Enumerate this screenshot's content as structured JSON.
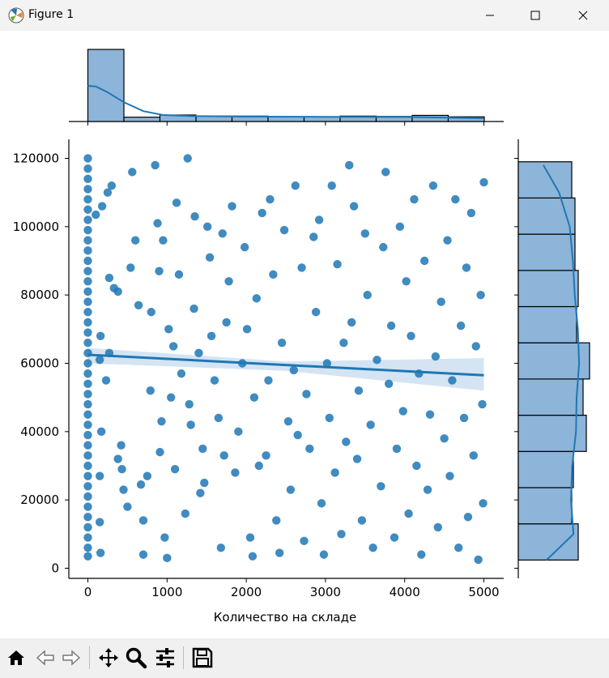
{
  "window": {
    "title": "Figure 1",
    "buttons": [
      "minimize",
      "maximize",
      "close"
    ]
  },
  "toolbar": {
    "tools": [
      "home-icon",
      "back-icon",
      "forward-icon",
      "pan-icon",
      "zoom-icon",
      "configure-subplots-icon",
      "save-icon"
    ]
  },
  "colors": {
    "series": "#1f77b4",
    "hist_fill": "#8db4d9",
    "ci_band": "#c6dbef"
  },
  "chart_data": {
    "type": "scatter",
    "title": "",
    "xlabel": "Количество на складе",
    "ylabel": "",
    "xlim": [
      -250,
      5250
    ],
    "ylim": [
      -3000,
      125000
    ],
    "xticks": [
      0,
      1000,
      2000,
      3000,
      4000,
      5000
    ],
    "yticks": [
      0,
      20000,
      40000,
      60000,
      80000,
      100000,
      120000
    ],
    "xtick_labels": [
      "0",
      "1000",
      "2000",
      "3000",
      "4000",
      "5000"
    ],
    "ytick_labels": [
      "0",
      "20000",
      "40000",
      "60000",
      "80000",
      "100000",
      "120000"
    ],
    "regression_line": {
      "x": [
        0,
        5000
      ],
      "y": [
        62500,
        56500
      ]
    },
    "confidence_band": {
      "x": [
        0,
        2500,
        5000
      ],
      "lower": [
        60000,
        57800,
        52000
      ],
      "upper": [
        64500,
        60500,
        61500
      ]
    },
    "scatter_points": [
      [
        0,
        3500
      ],
      [
        0,
        6000
      ],
      [
        0,
        9000
      ],
      [
        0,
        12000
      ],
      [
        0,
        15000
      ],
      [
        0,
        18000
      ],
      [
        0,
        21000
      ],
      [
        0,
        24000
      ],
      [
        0,
        27000
      ],
      [
        0,
        30000
      ],
      [
        0,
        33000
      ],
      [
        0,
        36000
      ],
      [
        0,
        39000
      ],
      [
        0,
        42000
      ],
      [
        0,
        45000
      ],
      [
        0,
        48000
      ],
      [
        0,
        51000
      ],
      [
        0,
        54000
      ],
      [
        0,
        57000
      ],
      [
        0,
        60000
      ],
      [
        0,
        63000
      ],
      [
        0,
        66000
      ],
      [
        0,
        69000
      ],
      [
        0,
        72000
      ],
      [
        0,
        75000
      ],
      [
        0,
        78000
      ],
      [
        0,
        81000
      ],
      [
        0,
        84000
      ],
      [
        0,
        87000
      ],
      [
        0,
        90000
      ],
      [
        0,
        93000
      ],
      [
        0,
        96000
      ],
      [
        0,
        99000
      ],
      [
        0,
        102000
      ],
      [
        0,
        105000
      ],
      [
        0,
        108000
      ],
      [
        0,
        111000
      ],
      [
        0,
        114000
      ],
      [
        0,
        117000
      ],
      [
        0,
        120000
      ],
      [
        160,
        4500
      ],
      [
        150,
        61000
      ],
      [
        160,
        68000
      ],
      [
        100,
        103500
      ],
      [
        180,
        106000
      ],
      [
        170,
        40000
      ],
      [
        150,
        27000
      ],
      [
        150,
        13500
      ],
      [
        270,
        85000
      ],
      [
        330,
        82000
      ],
      [
        380,
        81000
      ],
      [
        250,
        110000
      ],
      [
        300,
        112000
      ],
      [
        270,
        63000
      ],
      [
        230,
        55000
      ],
      [
        380,
        32000
      ],
      [
        420,
        36000
      ],
      [
        430,
        29000
      ],
      [
        450,
        23000
      ],
      [
        500,
        18000
      ],
      [
        540,
        88000
      ],
      [
        560,
        116000
      ],
      [
        600,
        96000
      ],
      [
        640,
        77000
      ],
      [
        670,
        24500
      ],
      [
        700,
        14000
      ],
      [
        700,
        4000
      ],
      [
        750,
        27000
      ],
      [
        790,
        52000
      ],
      [
        800,
        75000
      ],
      [
        850,
        118000
      ],
      [
        880,
        101000
      ],
      [
        900,
        87000
      ],
      [
        910,
        34000
      ],
      [
        930,
        43000
      ],
      [
        950,
        96000
      ],
      [
        970,
        9000
      ],
      [
        1000,
        3000
      ],
      [
        1020,
        70000
      ],
      [
        1050,
        50000
      ],
      [
        1080,
        65000
      ],
      [
        1100,
        29000
      ],
      [
        1120,
        107000
      ],
      [
        1150,
        86000
      ],
      [
        1180,
        57000
      ],
      [
        1230,
        16000
      ],
      [
        1260,
        120000
      ],
      [
        1280,
        48000
      ],
      [
        1300,
        42000
      ],
      [
        1340,
        76000
      ],
      [
        1350,
        103000
      ],
      [
        1400,
        63000
      ],
      [
        1420,
        22000
      ],
      [
        1450,
        35000
      ],
      [
        1470,
        25000
      ],
      [
        1510,
        100000
      ],
      [
        1540,
        91000
      ],
      [
        1560,
        68000
      ],
      [
        1600,
        55000
      ],
      [
        1650,
        44000
      ],
      [
        1680,
        6000
      ],
      [
        1700,
        98000
      ],
      [
        1720,
        33000
      ],
      [
        1750,
        72000
      ],
      [
        1780,
        84000
      ],
      [
        1820,
        106000
      ],
      [
        1860,
        28000
      ],
      [
        1900,
        40000
      ],
      [
        1950,
        60000
      ],
      [
        1980,
        94000
      ],
      [
        2010,
        70000
      ],
      [
        2050,
        9000
      ],
      [
        2080,
        3500
      ],
      [
        2100,
        50000
      ],
      [
        2130,
        79000
      ],
      [
        2160,
        30000
      ],
      [
        2200,
        104000
      ],
      [
        2250,
        33000
      ],
      [
        2280,
        55000
      ],
      [
        2300,
        108000
      ],
      [
        2340,
        86000
      ],
      [
        2380,
        14000
      ],
      [
        2420,
        4500
      ],
      [
        2450,
        66000
      ],
      [
        2480,
        99000
      ],
      [
        2530,
        43000
      ],
      [
        2560,
        23000
      ],
      [
        2600,
        58000
      ],
      [
        2620,
        112000
      ],
      [
        2650,
        39000
      ],
      [
        2700,
        88000
      ],
      [
        2730,
        8000
      ],
      [
        2760,
        51000
      ],
      [
        2800,
        35000
      ],
      [
        2850,
        97000
      ],
      [
        2880,
        75000
      ],
      [
        2920,
        102000
      ],
      [
        2950,
        19000
      ],
      [
        2980,
        4000
      ],
      [
        3020,
        60000
      ],
      [
        3050,
        44000
      ],
      [
        3080,
        112000
      ],
      [
        3120,
        28000
      ],
      [
        3150,
        89000
      ],
      [
        3200,
        10000
      ],
      [
        3230,
        66000
      ],
      [
        3260,
        37000
      ],
      [
        3300,
        118000
      ],
      [
        3330,
        72000
      ],
      [
        3360,
        106000
      ],
      [
        3400,
        32000
      ],
      [
        3420,
        52000
      ],
      [
        3460,
        14000
      ],
      [
        3500,
        98000
      ],
      [
        3530,
        80000
      ],
      [
        3570,
        42000
      ],
      [
        3600,
        6000
      ],
      [
        3650,
        61000
      ],
      [
        3700,
        24000
      ],
      [
        3730,
        94000
      ],
      [
        3760,
        116000
      ],
      [
        3800,
        54000
      ],
      [
        3830,
        71000
      ],
      [
        3870,
        9000
      ],
      [
        3900,
        35000
      ],
      [
        3940,
        100000
      ],
      [
        3980,
        46000
      ],
      [
        4020,
        84000
      ],
      [
        4050,
        16000
      ],
      [
        4080,
        68000
      ],
      [
        4120,
        108000
      ],
      [
        4150,
        30000
      ],
      [
        4180,
        57000
      ],
      [
        4210,
        4000
      ],
      [
        4250,
        90000
      ],
      [
        4290,
        23000
      ],
      [
        4320,
        45000
      ],
      [
        4360,
        112000
      ],
      [
        4390,
        62000
      ],
      [
        4420,
        12000
      ],
      [
        4460,
        78000
      ],
      [
        4500,
        38000
      ],
      [
        4540,
        96000
      ],
      [
        4570,
        27000
      ],
      [
        4600,
        55000
      ],
      [
        4640,
        108000
      ],
      [
        4680,
        6000
      ],
      [
        4710,
        71000
      ],
      [
        4750,
        44000
      ],
      [
        4780,
        88000
      ],
      [
        4800,
        15000
      ],
      [
        4840,
        104000
      ],
      [
        4870,
        33000
      ],
      [
        4900,
        65000
      ],
      [
        4930,
        2500
      ],
      [
        4960,
        80000
      ],
      [
        4980,
        48000
      ],
      [
        5000,
        113000
      ],
      [
        4990,
        19000
      ]
    ],
    "top_histogram": {
      "bin_edges": [
        0,
        455,
        910,
        1365,
        1820,
        2275,
        2730,
        3185,
        3640,
        4095,
        4550,
        5005
      ],
      "counts": [
        200,
        12,
        18,
        15,
        15,
        13,
        13,
        15,
        14,
        17,
        13
      ]
    },
    "right_histogram": {
      "bin_edges": [
        2400,
        13000,
        23600,
        34200,
        44800,
        55400,
        66000,
        76600,
        87200,
        97800,
        108400,
        119000
      ],
      "counts": [
        37,
        33,
        34,
        42,
        40,
        44,
        36,
        37,
        35,
        35,
        33
      ]
    }
  }
}
